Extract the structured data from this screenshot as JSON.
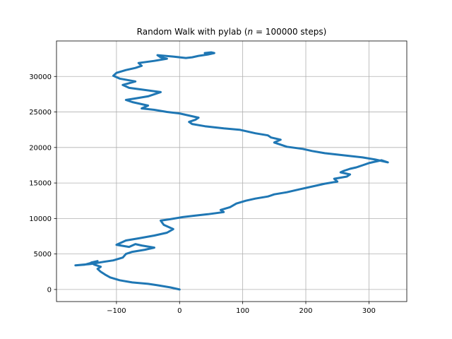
{
  "chart_data": {
    "type": "line",
    "title_parts": [
      "Random Walk with pylab (",
      "n",
      " = 100000 steps)"
    ],
    "xlabel": "",
    "ylabel": "",
    "xlim": [
      -195,
      360
    ],
    "ylim": [
      -1700,
      35000
    ],
    "xticks": [
      -100,
      0,
      100,
      200,
      300
    ],
    "xtick_labels": [
      "−100",
      "0",
      "100",
      "200",
      "300"
    ],
    "yticks": [
      0,
      5000,
      10000,
      15000,
      20000,
      25000,
      30000
    ],
    "ytick_labels": [
      "0",
      "5000",
      "10000",
      "15000",
      "20000",
      "25000",
      "30000"
    ],
    "grid": true,
    "series": [
      {
        "color": "#1f77b4",
        "x": [
          0,
          -15,
          -35,
          -50,
          -75,
          -95,
          -110,
          -118,
          -125,
          -130,
          -125,
          -135,
          -140,
          -130,
          -150,
          -165,
          -140,
          -120,
          -105,
          -90,
          -85,
          -75,
          -55,
          -40,
          -60,
          -70,
          -80,
          -100,
          -85,
          -65,
          -40,
          -20,
          -10,
          -25,
          -30,
          -15,
          5,
          25,
          45,
          70,
          65,
          80,
          90,
          105,
          120,
          140,
          150,
          170,
          190,
          215,
          230,
          250,
          245,
          265,
          270,
          255,
          260,
          270,
          280,
          290,
          300,
          310,
          320,
          330,
          310,
          290,
          260,
          230,
          210,
          195,
          170,
          160,
          150,
          160,
          145,
          140,
          120,
          110,
          95,
          70,
          40,
          20,
          15,
          25,
          30,
          10,
          0,
          -20,
          -40,
          -60,
          -50,
          -75,
          -85,
          -70,
          -50,
          -40,
          -30,
          -55,
          -80,
          -90,
          -70,
          -95,
          -105,
          -100,
          -85,
          -70,
          -60,
          -65,
          -40,
          -20,
          -30,
          -35,
          -10,
          10,
          20,
          30,
          45,
          55,
          50,
          40
        ],
        "y": [
          0,
          300,
          600,
          800,
          1000,
          1300,
          1700,
          2100,
          2500,
          2900,
          3200,
          3500,
          3800,
          4000,
          3500,
          3400,
          3600,
          3900,
          4100,
          4500,
          5000,
          5300,
          5600,
          5900,
          6200,
          6400,
          6000,
          6300,
          6900,
          7200,
          7600,
          8000,
          8500,
          9100,
          9700,
          9900,
          10200,
          10400,
          10600,
          10900,
          11200,
          11600,
          12100,
          12500,
          12800,
          13100,
          13400,
          13700,
          14100,
          14600,
          14900,
          15200,
          15600,
          15900,
          16200,
          16500,
          16700,
          17000,
          17200,
          17500,
          17800,
          18000,
          18200,
          17900,
          18300,
          18600,
          18900,
          19200,
          19500,
          19800,
          20100,
          20400,
          20700,
          21100,
          21400,
          21700,
          22000,
          22200,
          22500,
          22700,
          23000,
          23300,
          23600,
          23900,
          24200,
          24600,
          24800,
          25000,
          25300,
          25500,
          25900,
          26400,
          26700,
          26900,
          27200,
          27500,
          27800,
          28100,
          28400,
          28800,
          29300,
          29700,
          30100,
          30500,
          30900,
          31200,
          31500,
          31900,
          32200,
          32500,
          32700,
          33000,
          32800,
          32600,
          32700,
          32900,
          33100,
          33300,
          33400,
          33300
        ]
      }
    ]
  }
}
